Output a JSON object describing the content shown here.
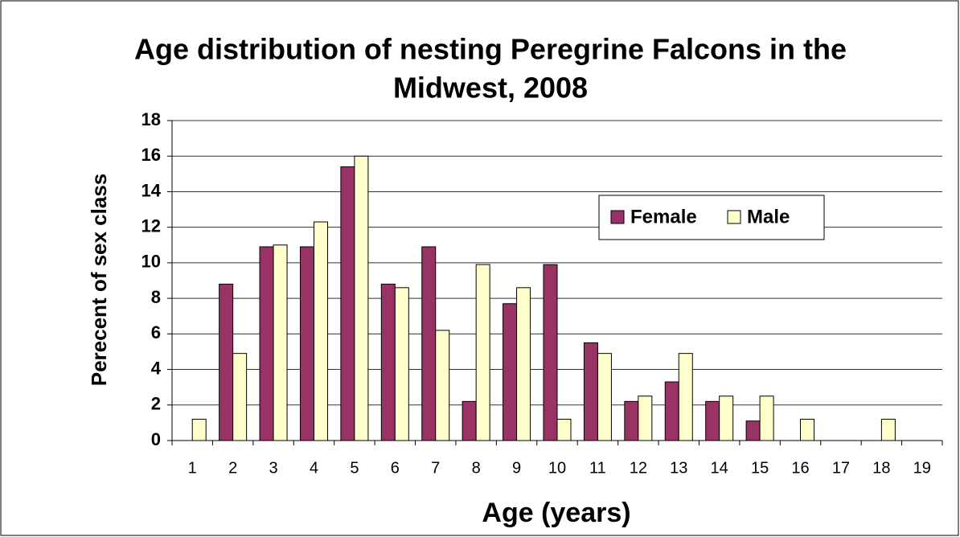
{
  "chart_data": {
    "type": "bar",
    "title": "Age distribution of nesting Peregrine Falcons in the Midwest, 2008",
    "title_lines": [
      "Age distribution of nesting Peregrine Falcons in the",
      "Midwest, 2008"
    ],
    "x_label": "Age (years)",
    "y_label": "Perecent of sex class",
    "categories": [
      "1",
      "2",
      "3",
      "4",
      "5",
      "6",
      "7",
      "8",
      "9",
      "10",
      "11",
      "12",
      "13",
      "14",
      "15",
      "16",
      "17",
      "18",
      "19"
    ],
    "series": [
      {
        "name": "Female",
        "color": "#993366",
        "values": [
          0,
          8.8,
          10.9,
          10.9,
          15.4,
          8.8,
          10.9,
          2.2,
          7.7,
          9.9,
          5.5,
          2.2,
          3.3,
          2.2,
          1.1,
          0,
          0,
          0,
          0
        ]
      },
      {
        "name": "Male",
        "color": "#FFFFCC",
        "values": [
          1.2,
          4.9,
          11.0,
          12.3,
          16.0,
          8.6,
          6.2,
          9.9,
          8.6,
          1.2,
          4.9,
          2.5,
          4.9,
          2.5,
          2.5,
          1.2,
          0,
          1.2,
          0
        ]
      }
    ],
    "ylim": [
      0,
      18
    ],
    "yticks": [
      0,
      2,
      4,
      6,
      8,
      10,
      12,
      14,
      16,
      18
    ],
    "grid": true
  }
}
